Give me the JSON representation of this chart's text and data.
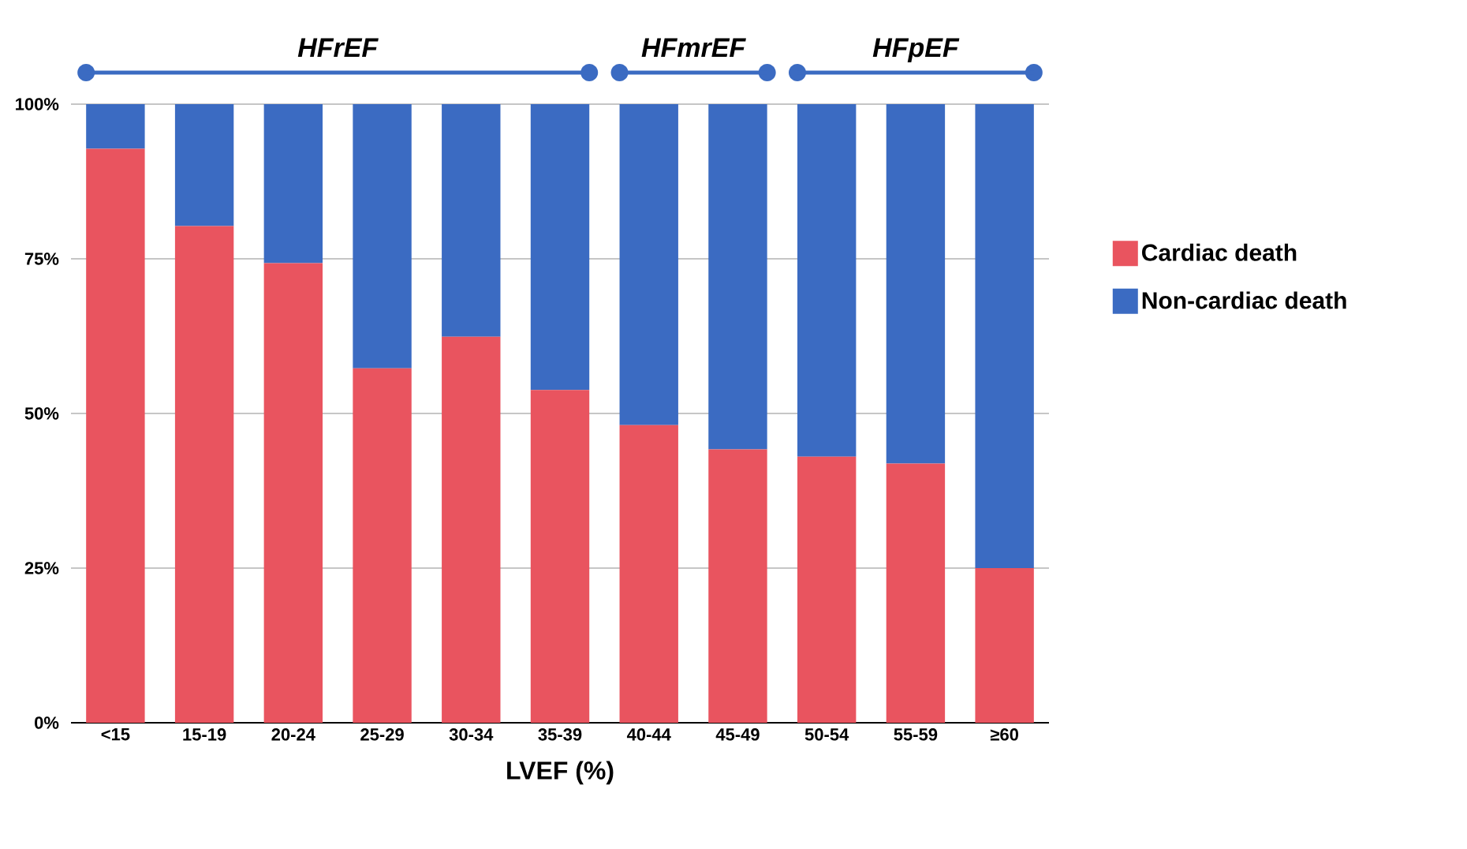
{
  "chart_data": {
    "type": "bar",
    "stacked": true,
    "xlabel": "LVEF (%)",
    "categories": [
      "<15",
      "15-19",
      "20-24",
      "25-29",
      "30-34",
      "35-39",
      "40-44",
      "45-49",
      "50-54",
      "55-59",
      "≥60"
    ],
    "series": [
      {
        "name": "Cardiac death",
        "color": "#e9545f",
        "values": [
          92.8,
          80.3,
          74.3,
          57.3,
          62.4,
          53.8,
          48.1,
          44.2,
          43.0,
          41.9,
          25
        ]
      },
      {
        "name": "Non-cardiac death",
        "color": "#3b6bc2",
        "values": [
          7.2,
          19.7,
          25.7,
          42.7,
          37.6,
          46.2,
          51.9,
          55.8,
          57.0,
          58.1,
          75
        ]
      }
    ],
    "ylim": [
      0,
      100
    ],
    "yticks": [
      {
        "value": 0,
        "label": "0%"
      },
      {
        "value": 25,
        "label": "25%"
      },
      {
        "value": 50,
        "label": "50%"
      },
      {
        "value": 75,
        "label": "75%"
      },
      {
        "value": 100,
        "label": "100%"
      }
    ],
    "grid": "y",
    "legend": "right",
    "annotations": [
      "HFrEF",
      "HFmrEF",
      "HFpEF"
    ]
  }
}
